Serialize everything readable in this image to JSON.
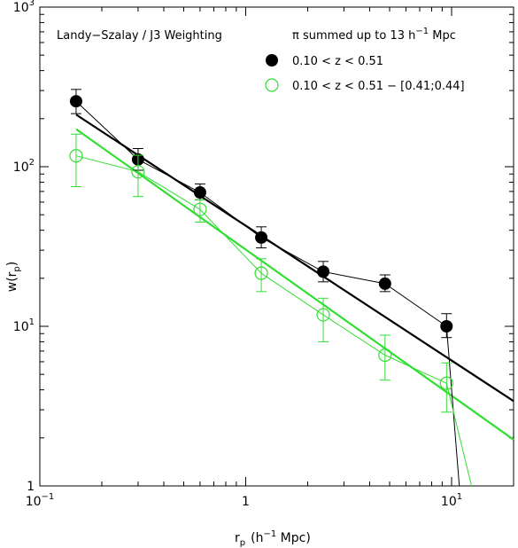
{
  "chart_data": {
    "type": "scatter",
    "xlabel": "r",
    "xlabel_sub": "p",
    "xlabel_units_pre": "(h",
    "xlabel_units_exp": "−1",
    "xlabel_units_post": " Mpc)",
    "ylabel": "w(r",
    "ylabel_sub": "p",
    "ylabel_post": ")",
    "x_scale": "log",
    "y_scale": "log",
    "xlim": [
      0.1,
      20
    ],
    "ylim": [
      1,
      1000
    ],
    "x_ticks": [
      {
        "value": 0.1,
        "base": "10",
        "exp": "−1"
      },
      {
        "value": 1,
        "base": "1",
        "exp": ""
      },
      {
        "value": 10,
        "base": "10",
        "exp": "1"
      }
    ],
    "y_ticks": [
      {
        "value": 1,
        "base": "1",
        "exp": ""
      },
      {
        "value": 10,
        "base": "10",
        "exp": "1"
      },
      {
        "value": 100,
        "base": "10",
        "exp": "2"
      },
      {
        "value": 1000,
        "base": "10",
        "exp": "3"
      }
    ],
    "annotation": "Landy−Szalay / J3 Weighting",
    "legend_title_pre": "π summed up to 13 h",
    "legend_title_exp": "−1",
    "legend_title_post": " Mpc",
    "legend_position": "top-right",
    "series": [
      {
        "name": "0.10 < z < 0.51",
        "marker": "filled-circle",
        "color": "#000000",
        "x": [
          0.15,
          0.3,
          0.6,
          1.19,
          2.38,
          4.75,
          9.45
        ],
        "y": [
          257,
          111,
          69,
          36,
          22,
          18.5,
          10
        ],
        "err_low": [
          215,
          95,
          62,
          31,
          19,
          16.5,
          8.5
        ],
        "err_high": [
          305,
          130,
          78,
          42,
          25.5,
          21,
          12
        ],
        "fit": {
          "x": [
            0.15,
            20
          ],
          "y": [
            212,
            3.4
          ]
        },
        "tail": {
          "x": [
            9.45,
            10.9
          ],
          "y": [
            10,
            1
          ]
        }
      },
      {
        "name": "0.10 < z < 0.51 − [0.41;0.44]",
        "marker": "open-circle",
        "color": "#33dd33",
        "x": [
          0.15,
          0.3,
          0.6,
          1.19,
          2.38,
          4.75,
          9.45
        ],
        "y": [
          117,
          93,
          54,
          21.5,
          11.8,
          6.6,
          4.4
        ],
        "err_low": [
          75,
          65,
          45,
          16.5,
          8.0,
          4.6,
          2.9
        ],
        "err_high": [
          160,
          118,
          62,
          26.5,
          15,
          8.8,
          5.9
        ],
        "fit": {
          "x": [
            0.15,
            20
          ],
          "y": [
            172,
            1.95
          ]
        },
        "tail": {
          "x": [
            9.45,
            12.5
          ],
          "y": [
            4.4,
            1
          ]
        }
      }
    ]
  }
}
